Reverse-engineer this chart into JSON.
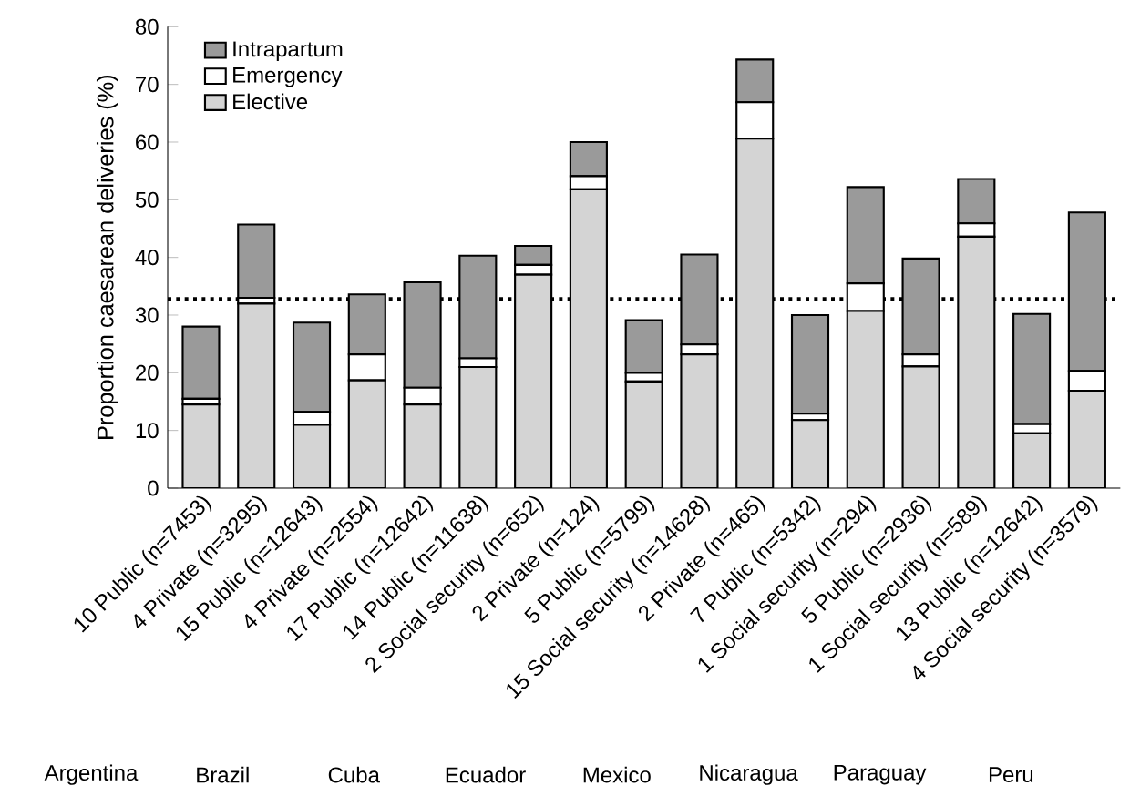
{
  "chart_data": {
    "type": "bar",
    "stacked": true,
    "ylabel": "Proportion caesarean deliveries (%)",
    "categories": [
      "10 Public (n=7453)",
      "4 Private (n=3295)",
      "15 Public (n=12643)",
      "4 Private (n=2554)",
      "17 Public (n=12642)",
      "14 Public (n=11638)",
      "2 Social security (n=652)",
      "2 Private (n=124)",
      "5 Public (n=5799)",
      "15 Social security (n=14628)",
      "2 Private (n=465)",
      "7 Public (n=5342)",
      "1 Social security (n=294)",
      "5 Public (n=2936)",
      "1 Social security (n=589)",
      "13 Public (n=12642)",
      "4 Social security (n=3579)"
    ],
    "series": [
      {
        "name": "Elective",
        "color": "#d4d4d4",
        "values": [
          14.5,
          32,
          11,
          18.7,
          14.5,
          21,
          37,
          51.8,
          18.5,
          23.2,
          60.6,
          11.8,
          30.7,
          21.1,
          43.6,
          9.5,
          16.9
        ]
      },
      {
        "name": "Emergency",
        "color": "#ffffff",
        "values": [
          1,
          1,
          2.2,
          4.5,
          2.9,
          1.5,
          1.7,
          2.3,
          1.5,
          1.7,
          6.3,
          1.1,
          4.8,
          2.1,
          2.3,
          1.6,
          3.4
        ]
      },
      {
        "name": "Intrapartum",
        "color": "#9a9a9a",
        "values": [
          12.5,
          12.7,
          15.5,
          10.4,
          18.3,
          17.8,
          3.3,
          5.9,
          9.1,
          15.6,
          7.4,
          17.1,
          16.7,
          16.6,
          7.7,
          19.1,
          27.5
        ]
      }
    ],
    "ylim": [
      0,
      80
    ],
    "yticks": [
      0,
      10,
      20,
      30,
      40,
      50,
      60,
      70,
      80
    ],
    "ref_lines": [
      {
        "axis": "y",
        "value": 32.8,
        "line_style": "dotted",
        "color": "#000000"
      }
    ],
    "legend": "top left",
    "annotations": [
      "Argentina",
      "Brazil",
      "Cuba",
      "Ecuador",
      "Mexico",
      "Nicaragua",
      "Paraguay",
      "Peru"
    ]
  }
}
